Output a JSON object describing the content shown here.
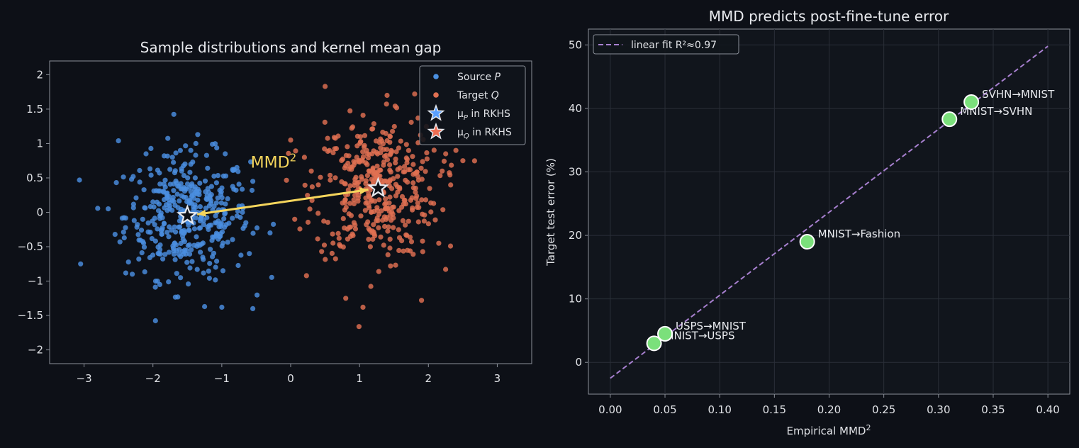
{
  "chart_data": [
    {
      "type": "scatter",
      "title": "Sample distributions and kernel mean gap",
      "xlim": [
        -3.5,
        3.5
      ],
      "ylim": [
        -2.2,
        2.2
      ],
      "xticks": [
        -3,
        -2,
        -1,
        0,
        1,
        2,
        3
      ],
      "yticks": [
        -2.0,
        -1.5,
        -1.0,
        -0.5,
        0.0,
        0.5,
        1.0,
        1.5,
        2.0
      ],
      "grid": false,
      "legend_position": "top-right",
      "series": [
        {
          "name": "Source P",
          "color": "#4a8fe0",
          "distribution": {
            "center": [
              -1.5,
              -0.05
            ],
            "std": [
              0.45,
              0.45
            ],
            "n": 400
          },
          "points": [
            [
              -3.05,
              -0.75
            ],
            [
              -2.65,
              0.05
            ],
            [
              -2.55,
              -0.32
            ],
            [
              -2.5,
              1.04
            ],
            [
              -2.3,
              -0.9
            ],
            [
              -2.1,
              0.85
            ],
            [
              -1.9,
              -1.05
            ],
            [
              -1.6,
              -0.95
            ],
            [
              -1.35,
              1.13
            ],
            [
              -1.25,
              -1.37
            ],
            [
              -1.0,
              -1.38
            ],
            [
              -0.55,
              -1.4
            ],
            [
              -0.7,
              0.0
            ],
            [
              -0.6,
              -0.6
            ],
            [
              -0.3,
              -0.3
            ],
            [
              -0.55,
              0.45
            ],
            [
              -0.95,
              0.85
            ],
            [
              -1.45,
              0.9
            ],
            [
              -2.0,
              0.15
            ]
          ]
        },
        {
          "name": "Target Q",
          "color": "#e07052",
          "distribution": {
            "center": [
              1.25,
              0.35
            ],
            "std": [
              0.45,
              0.5
            ],
            "n": 400
          },
          "points": [
            [
              0.5,
              1.83
            ],
            [
              1.4,
              1.7
            ],
            [
              1.8,
              1.72
            ],
            [
              1.85,
              1.37
            ],
            [
              0.3,
              0.6
            ],
            [
              0.2,
              0.8
            ],
            [
              0.0,
              1.05
            ],
            [
              0.45,
              -0.57
            ],
            [
              0.8,
              -1.25
            ],
            [
              1.05,
              -1.38
            ],
            [
              1.9,
              -1.28
            ],
            [
              2.15,
              -0.45
            ],
            [
              2.25,
              -0.83
            ],
            [
              2.4,
              0.9
            ],
            [
              2.2,
              0.6
            ],
            [
              2.5,
              0.75
            ],
            [
              1.45,
              -0.78
            ]
          ]
        }
      ],
      "markers": [
        {
          "name": "μ_P in RKHS",
          "x": -1.5,
          "y": -0.05,
          "color": "#5aa0ff"
        },
        {
          "name": "μ_Q in RKHS",
          "x": 1.27,
          "y": 0.35,
          "color": "#f06e52"
        }
      ],
      "annotation": {
        "text": "MMD",
        "superscript": "2",
        "x": -0.58,
        "y": 0.65,
        "color": "#f5d55c",
        "arrow": {
          "from": [
            1.27,
            0.35
          ],
          "to": [
            -1.5,
            -0.05
          ]
        }
      }
    },
    {
      "type": "scatter",
      "title": "MMD predicts post-fine-tune error",
      "xlabel": "Empirical MMD",
      "xlabel_sup": "2",
      "ylabel": "Target test error (%)",
      "xlim": [
        -0.02,
        0.42
      ],
      "ylim": [
        -5,
        52.5
      ],
      "xticks": [
        0.0,
        0.05,
        0.1,
        0.15,
        0.2,
        0.25,
        0.3,
        0.35,
        0.4
      ],
      "xtick_labels": [
        "0.00",
        "0.05",
        "0.10",
        "0.15",
        "0.20",
        "0.25",
        "0.30",
        "0.35",
        "0.40"
      ],
      "yticks": [
        0,
        10,
        20,
        30,
        40,
        50
      ],
      "grid": true,
      "legend_position": "top-left",
      "points": [
        {
          "label": "MNIST→USPS",
          "x": 0.04,
          "y": 3.0
        },
        {
          "label": "USPS→MNIST",
          "x": 0.05,
          "y": 4.5
        },
        {
          "label": "MNIST→Fashion",
          "x": 0.18,
          "y": 19.0
        },
        {
          "label": "MNIST→SVHN",
          "x": 0.31,
          "y": 38.3
        },
        {
          "label": "SVHN→MNIST",
          "x": 0.33,
          "y": 41.0
        }
      ],
      "point_color": "#7be07b",
      "fit": {
        "name": "linear fit  R²≈0.97",
        "x": [
          0.0,
          0.4
        ],
        "y": [
          -2.5,
          49.8
        ],
        "color": "#a880d0"
      }
    }
  ]
}
